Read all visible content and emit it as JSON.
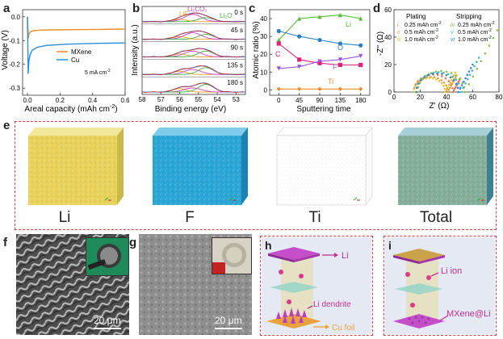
{
  "panel_labels": {
    "a": "a",
    "b": "b",
    "c": "c",
    "d": "d",
    "e": "e",
    "f": "f",
    "g": "g",
    "h": "h",
    "i": "i"
  },
  "chart_data": [
    {
      "panel": "a",
      "type": "line",
      "xlabel": "Areal capacity (mAh cm",
      "xlabel_sup": "-2",
      "xlabel_end": ")",
      "ylabel": "Voltage (V)",
      "xlim": [
        -0.03,
        0.6
      ],
      "ylim": [
        -0.33,
        0.03
      ],
      "xticks": [
        0.0,
        0.2,
        0.4,
        0.6
      ],
      "xtick_labels": [
        "0.0",
        "0.2",
        "0.4",
        "0.6"
      ],
      "yticks": [
        0.0,
        -0.1,
        -0.2,
        -0.3
      ],
      "ytick_labels": [
        "0.0",
        "-0.1",
        "-0.2",
        "-0.3"
      ],
      "annotation": "5 mA cm",
      "annotation_sup": "-2",
      "series": [
        {
          "name": "MXene",
          "color": "#f08a24",
          "x": [
            0.0,
            0.005,
            0.01,
            0.02,
            0.04,
            0.08,
            0.15,
            0.3,
            0.45,
            0.6
          ],
          "y": [
            0.0,
            -0.09,
            -0.07,
            -0.062,
            -0.058,
            -0.056,
            -0.055,
            -0.054,
            -0.053,
            -0.052
          ]
        },
        {
          "name": "Cu",
          "color": "#2a8fd8",
          "x": [
            0.0,
            0.004,
            0.008,
            0.015,
            0.03,
            0.06,
            0.12,
            0.25,
            0.4,
            0.6
          ],
          "y": [
            0.0,
            -0.24,
            -0.19,
            -0.16,
            -0.14,
            -0.128,
            -0.12,
            -0.115,
            -0.112,
            -0.11
          ]
        }
      ]
    },
    {
      "panel": "b",
      "type": "line",
      "xlabel": "Binding energy (eV)",
      "ylabel": "Intensity (a.u.)",
      "xlim": [
        58,
        52.5
      ],
      "xticks": [
        58,
        57,
        56,
        55,
        54,
        53
      ],
      "xtick_labels": [
        "58",
        "57",
        "56",
        "55",
        "54",
        "53"
      ],
      "time_labels": [
        "0 s",
        "45 s",
        "90 s",
        "135 s",
        "180 s"
      ],
      "peak_labels": {
        "lif": "LiF",
        "li2co3": "Li₂CO₃",
        "li2o": "Li₂O"
      },
      "component_colors": {
        "lif": "#f0a020",
        "li2co3": "#cc44cc",
        "li2o": "#44aa44",
        "raw": "#cc2222",
        "envelope": "#4477cc"
      }
    },
    {
      "panel": "c",
      "type": "line",
      "xlabel": "Sputtering time",
      "ylabel": "Atomic ratio (%)",
      "x": [
        0,
        45,
        90,
        135,
        180
      ],
      "xtick_labels": [
        "0",
        "45",
        "90",
        "135",
        "180"
      ],
      "xlim": [
        -20,
        200
      ],
      "ylim": [
        -3,
        45
      ],
      "yticks": [
        0,
        10,
        20,
        30,
        40
      ],
      "ytick_labels": [
        "0",
        "10",
        "20",
        "30",
        "40"
      ],
      "series": [
        {
          "name": "Li",
          "color": "#55bb33",
          "marker": "triangle-up",
          "values": [
            28,
            40,
            41,
            42,
            40
          ]
        },
        {
          "name": "O",
          "color": "#2a7fc4",
          "marker": "circle",
          "values": [
            33,
            30,
            28,
            26,
            25
          ]
        },
        {
          "name": "C",
          "color": "#e0227a",
          "marker": "square",
          "values": [
            26,
            17,
            15,
            14,
            14
          ]
        },
        {
          "name": "F",
          "color": "#9955dd",
          "marker": "triangle-down",
          "values": [
            12,
            13,
            16,
            17,
            19
          ]
        },
        {
          "name": "Ti",
          "color": "#f08a24",
          "marker": "diamond",
          "values": [
            0.5,
            0.5,
            0.5,
            0.5,
            0.5
          ]
        }
      ]
    },
    {
      "panel": "d",
      "type": "scatter",
      "xlabel": "Z' (Ω)",
      "ylabel": "-Z'' (Ω)",
      "xlim": [
        0,
        80
      ],
      "ylim": [
        0,
        60
      ],
      "xticks": [
        0,
        20,
        40,
        60,
        80
      ],
      "xtick_labels": [
        "0",
        "20",
        "40",
        "60",
        "80"
      ],
      "yticks": [
        0,
        20,
        40,
        60
      ],
      "ytick_labels": [
        "0",
        "20",
        "40",
        "60"
      ],
      "legend_titles": {
        "plating": "Plating",
        "stripping": "Stripping"
      },
      "series": [
        {
          "id": "i",
          "group": "plating",
          "name": "0.25 mAh cm",
          "sup": "-2",
          "color": "#e07a5a",
          "center": 30,
          "radius": 15,
          "tail": 10
        },
        {
          "id": "ii",
          "group": "plating",
          "name": "0.5 mAh cm",
          "sup": "-2",
          "color": "#e0a040",
          "center": 28,
          "radius": 13,
          "tail": 12
        },
        {
          "id": "iii",
          "group": "plating",
          "name": "1.0 mAh cm",
          "sup": "-2",
          "color": "#e8c040",
          "center": 27,
          "radius": 12,
          "tail": 14
        },
        {
          "id": "iv",
          "group": "stripping",
          "name": "0.25 mAh cm",
          "sup": "-2",
          "color": "#88c040",
          "center": 36,
          "radius": 18,
          "tail": 45
        },
        {
          "id": "v",
          "group": "stripping",
          "name": "0.5 mAh cm",
          "sup": "-2",
          "color": "#40b8c0",
          "center": 34,
          "radius": 17,
          "tail": 25
        },
        {
          "id": "vi",
          "group": "stripping",
          "name": "1.0 mAh cm",
          "sup": "-2",
          "color": "#4080d0",
          "center": 33,
          "radius": 16,
          "tail": 20
        }
      ]
    }
  ],
  "tof_sims": {
    "labels": [
      "Li",
      "F",
      "Ti",
      "Total"
    ],
    "colors": [
      "#e8d25a",
      "#2aa6d6",
      "#9a9a9a",
      "#5aa0b8"
    ]
  },
  "sem": {
    "f_scalebar": "20 μm",
    "g_scalebar": "20 μm"
  },
  "schematic_h": {
    "li": "Li",
    "dendrite": "Li dendrite",
    "cu_foil": "Cu foil"
  },
  "schematic_i": {
    "li_ion": "Li ion",
    "mxene_li": "MXene@Li"
  }
}
